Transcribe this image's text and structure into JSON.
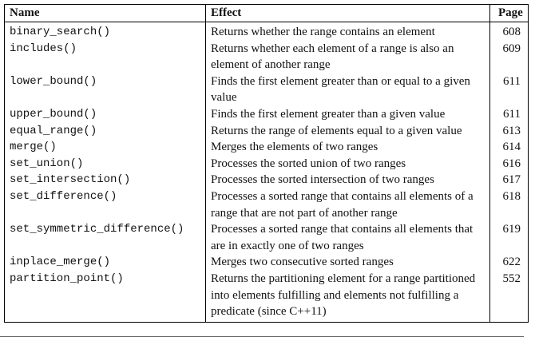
{
  "table": {
    "headers": {
      "name": "Name",
      "effect": "Effect",
      "page": "Page"
    },
    "rows": [
      {
        "name": "binary_search()",
        "effect": "Returns whether the range contains an element",
        "page": "608"
      },
      {
        "name": "includes()",
        "effect": "Returns whether each element of a range is also an element of another range",
        "page": "609"
      },
      {
        "name": "lower_bound()",
        "effect": "Finds the first element greater than or equal to a given value",
        "page": "611"
      },
      {
        "name": "upper_bound()",
        "effect": "Finds the first element greater than a given value",
        "page": "611"
      },
      {
        "name": "equal_range()",
        "effect": "Returns the range of elements equal to a given value",
        "page": "613"
      },
      {
        "name": "merge()",
        "effect": "Merges the elements of two ranges",
        "page": "614"
      },
      {
        "name": "set_union()",
        "effect": "Processes the sorted union of two ranges",
        "page": "616"
      },
      {
        "name": "set_intersection()",
        "effect": "Processes the sorted intersection of two ranges",
        "page": "617"
      },
      {
        "name": "set_difference()",
        "effect": "Processes a sorted range that contains all elements of a range that are not part of another range",
        "page": "618"
      },
      {
        "name": "set_symmetric_difference()",
        "effect": "Processes a sorted range that contains all elements that are in exactly one of two ranges",
        "page": "619"
      },
      {
        "name": "inplace_merge()",
        "effect": "Merges two consecutive sorted ranges",
        "page": "622"
      },
      {
        "name": "partition_point()",
        "effect": "Returns the partitioning element for a range partitioned into elements fulfilling and elements not fulfilling a predicate (since C++11)",
        "page": "552"
      }
    ]
  }
}
